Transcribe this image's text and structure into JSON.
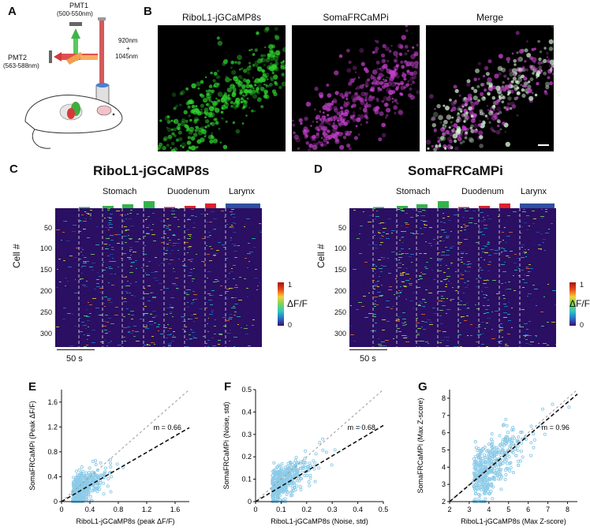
{
  "panels": {
    "A": "A",
    "B": "B",
    "C": "C",
    "D": "D",
    "E": "E",
    "F": "F",
    "G": "G"
  },
  "panelA": {
    "pmt1": "PMT1",
    "pmt1_range": "(500-550nm)",
    "pmt2": "PMT2",
    "pmt2_range": "(563-588nm)",
    "laser1": "920nm",
    "plus": "+",
    "laser2": "1045nm"
  },
  "panelB": {
    "titles": [
      "RiboL1-jGCaMP8s",
      "SomaFRCaMPi",
      "Merge"
    ]
  },
  "heatmaps": [
    {
      "title": "RiboL1-jGCaMP8s",
      "groups": [
        "Stomach",
        "Duodenum",
        "Larynx"
      ],
      "ylabel": "Cell #",
      "yticks": [
        "50",
        "100",
        "150",
        "200",
        "250",
        "300"
      ],
      "scalebar": "50 s",
      "cbar_label": "ΔF/F",
      "cbar_max": "1",
      "cbar_min": "0"
    },
    {
      "title": "SomaFRCaMPi",
      "groups": [
        "Stomach",
        "Duodenum",
        "Larynx"
      ],
      "ylabel": "Cell #",
      "yticks": [
        "50",
        "100",
        "150",
        "200",
        "250",
        "300"
      ],
      "scalebar": "50 s",
      "cbar_label": "ΔF/F",
      "cbar_max": "1",
      "cbar_min": "0"
    }
  ],
  "colors": {
    "stomach": "#33b44a",
    "duodenum": "#e0202a",
    "larynx": "#2f4fa2",
    "scatter_point": "#8ccbe8",
    "green_channel": "#2fd12f",
    "magenta_channel": "#c13fc9"
  },
  "chart_data": [
    {
      "type": "scatter",
      "xlabel": "RiboL1-jGCaMP8s (peak ΔF/F)",
      "ylabel": "SomaFRCaMPi (Peak ΔF/F)",
      "xlim": [
        0,
        1.8
      ],
      "ylim": [
        0,
        1.8
      ],
      "xticks": [
        "0",
        "0.4",
        "0.8",
        "1.2",
        "1.6"
      ],
      "yticks": [
        "0",
        "0.4",
        "0.8",
        "1.2",
        "1.6"
      ],
      "slope": 0.66,
      "annotation": "m = 0.66",
      "center": [
        0.2,
        0.15
      ],
      "spread": [
        0.15,
        0.12
      ]
    },
    {
      "type": "scatter",
      "xlabel": "RiboL1-jGCaMP8s (Noise, std)",
      "ylabel": "SomaFRCaMPi (Noise, std)",
      "xlim": [
        0,
        0.5
      ],
      "ylim": [
        0,
        0.5
      ],
      "xticks": [
        "0",
        "0.1",
        "0.2",
        "0.3",
        "0.4",
        "0.5"
      ],
      "yticks": [
        "0",
        "0.1",
        "0.2",
        "0.3",
        "0.4",
        "0.5"
      ],
      "slope": 0.68,
      "annotation": "m = 0.68",
      "center": [
        0.08,
        0.07
      ],
      "spread": [
        0.05,
        0.04
      ]
    },
    {
      "type": "scatter",
      "xlabel": "RiboL1-jGCaMP8s (Max Z-score)",
      "ylabel": "SomaFRCaMPi (Max Z-score)",
      "xlim": [
        2,
        8.5
      ],
      "ylim": [
        2,
        8.5
      ],
      "xticks": [
        "2",
        "3",
        "4",
        "5",
        "6",
        "7",
        "8"
      ],
      "yticks": [
        "2",
        "3",
        "4",
        "5",
        "6",
        "7",
        "8"
      ],
      "slope": 0.96,
      "annotation": "m = 0.96",
      "center": [
        3.5,
        3.4
      ],
      "spread": [
        0.9,
        0.8
      ]
    }
  ]
}
